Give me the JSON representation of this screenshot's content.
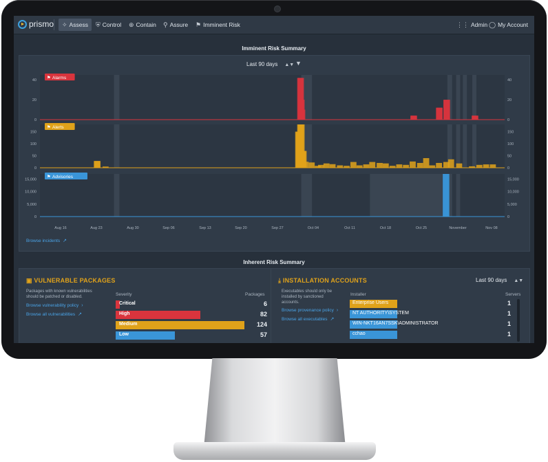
{
  "nav": {
    "logo": "prismo",
    "items": [
      {
        "label": "Assess",
        "icon": "assess-icon",
        "active": true
      },
      {
        "label": "Control",
        "icon": "shield-icon",
        "active": false
      },
      {
        "label": "Contain",
        "icon": "crosshair-icon",
        "active": false
      },
      {
        "label": "Assure",
        "icon": "search-icon",
        "active": false
      },
      {
        "label": "Imminent Risk",
        "icon": "flag-icon",
        "active": false
      }
    ],
    "admin": "Admin",
    "account": "My Account"
  },
  "imminent": {
    "title": "Imminent Risk Summary",
    "range": "Last 90 days",
    "browse_incidents": "Browse incidents"
  },
  "chart_data": {
    "type": "bar",
    "x_ticks": [
      "Aug 16",
      "Aug 23",
      "Aug 30",
      "Sep 06",
      "Sep 13",
      "Sep 20",
      "Sep 27",
      "Oct 04",
      "Oct 11",
      "Oct 18",
      "Oct 25",
      "November",
      "Nov 08"
    ],
    "series": [
      {
        "name": "Alarms",
        "color": "#d9343d",
        "yticks": [
          0,
          20,
          40
        ],
        "ymax": 45,
        "values": [
          [
            91,
            0
          ],
          [
            195,
            0
          ],
          [
            196,
            0
          ],
          [
            382,
            42
          ],
          [
            383,
            42
          ],
          [
            384,
            20
          ],
          [
            385,
            10
          ],
          [
            550,
            4
          ],
          [
            551,
            4
          ],
          [
            588,
            12
          ],
          [
            589,
            12
          ],
          [
            599,
            20
          ],
          [
            600,
            20
          ],
          [
            641,
            4
          ],
          [
            642,
            4
          ]
        ]
      },
      {
        "name": "Alerts",
        "color": "#e0a21a",
        "yticks": [
          0,
          50,
          100,
          150
        ],
        "ymax": 180,
        "values": [
          [
            80,
            28
          ],
          [
            81,
            28
          ],
          [
            93,
            5
          ],
          [
            379,
            150
          ],
          [
            380,
            150
          ],
          [
            381,
            150
          ],
          [
            382,
            180
          ],
          [
            383,
            180
          ],
          [
            384,
            180
          ],
          [
            385,
            70
          ],
          [
            386,
            70
          ],
          [
            387,
            70
          ],
          [
            390,
            25
          ],
          [
            399,
            22
          ],
          [
            408,
            8
          ],
          [
            413,
            12
          ],
          [
            421,
            18
          ],
          [
            430,
            15
          ],
          [
            441,
            10
          ],
          [
            451,
            8
          ],
          [
            461,
            24
          ],
          [
            470,
            10
          ],
          [
            480,
            14
          ],
          [
            489,
            24
          ],
          [
            500,
            20
          ],
          [
            509,
            18
          ],
          [
            519,
            8
          ],
          [
            529,
            14
          ],
          [
            539,
            12
          ],
          [
            549,
            26
          ],
          [
            560,
            20
          ],
          [
            569,
            40
          ],
          [
            578,
            10
          ],
          [
            588,
            20
          ],
          [
            599,
            24
          ],
          [
            606,
            35
          ],
          [
            618,
            18
          ],
          [
            637,
            6
          ],
          [
            648,
            12
          ],
          [
            658,
            14
          ],
          [
            668,
            14
          ]
        ]
      },
      {
        "name": "Advisories",
        "color": "#3a95d8",
        "yticks": [
          0,
          5000,
          10000,
          15000
        ],
        "ymax": 17000,
        "values": [
          [
            598,
            17000
          ],
          [
            599,
            17000
          ]
        ]
      }
    ]
  },
  "inherent": {
    "title": "Inherent Risk Summary",
    "vuln": {
      "title": "VULNERABLE PACKAGES",
      "desc": [
        "Packages with known vulnerabilities",
        "should be patched or disabled."
      ],
      "link_policy": "Browse vulnerability policy",
      "link_all": "Browse all vulnerabilities",
      "col_severity": "Severity",
      "col_packages": "Packages",
      "rows": [
        {
          "label": "Critical",
          "value": "6",
          "color": "#d9343d",
          "frac": 0.03
        },
        {
          "label": "High",
          "value": "82",
          "color": "#d9343d",
          "frac": 0.66
        },
        {
          "label": "Medium",
          "value": "124",
          "color": "#e0a21a",
          "frac": 1.0
        },
        {
          "label": "Low",
          "value": "57",
          "color": "#3a95d8",
          "frac": 0.46
        }
      ]
    },
    "install": {
      "title": "INSTALLATION ACCOUNTS",
      "range": "Last 90 days",
      "desc": [
        "Executables should only be",
        "installed by sanctioned",
        "accounts."
      ],
      "link_policy": "Browse provenance policy",
      "link_all": "Browse all executables",
      "col_installer": "Installer",
      "col_servers": "Servers",
      "rows": [
        {
          "label": "Enterprise Users",
          "value": "1",
          "color": "#e0a21a",
          "frac": 0.46
        },
        {
          "label": "NT AUTHORITY\\SYSTEM",
          "value": "1",
          "color": "#3a95d8",
          "frac": 0.46
        },
        {
          "label": "WIN-NKT16AN7SSK\\ADMINISTRATOR",
          "value": "1",
          "color": "#3a95d8",
          "frac": 0.46
        },
        {
          "label": "cchao",
          "value": "1",
          "color": "#3a95d8",
          "frac": 0.46
        }
      ]
    }
  }
}
